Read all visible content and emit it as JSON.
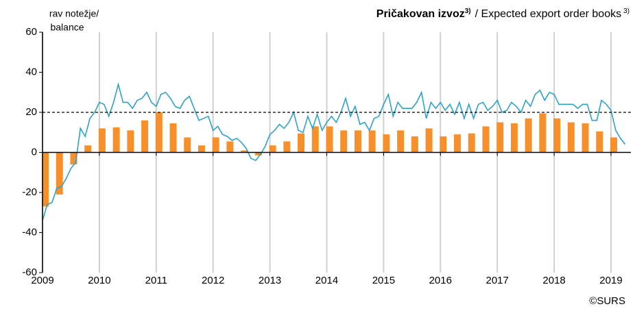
{
  "chart_data": {
    "type": "bar+line",
    "title": {
      "bold": "Pričakovan izvoz",
      "note": "3)",
      "text": "/ Expected export order books"
    },
    "ylabel": [
      "rav notežje/",
      "balance"
    ],
    "source": "©SURS",
    "xlim": [
      2009,
      2019.35
    ],
    "xticks": [
      2009,
      2010,
      2011,
      2012,
      2013,
      2014,
      2015,
      2016,
      2017,
      2018,
      2019
    ],
    "ylim": [
      -60,
      60
    ],
    "yticks": [
      -60,
      -40,
      -20,
      0,
      20,
      40,
      60
    ],
    "reference_line": 20,
    "grid": true,
    "series": [
      {
        "type": "bar",
        "color": "#f7902a",
        "x": [
          2009,
          2009.25,
          2009.5,
          2009.75,
          2010,
          2010.25,
          2010.5,
          2010.75,
          2011,
          2011.25,
          2011.5,
          2011.75,
          2012,
          2012.25,
          2012.5,
          2012.75,
          2013,
          2013.25,
          2013.5,
          2013.75,
          2014,
          2014.25,
          2014.5,
          2014.75,
          2015,
          2015.25,
          2015.5,
          2015.75,
          2016,
          2016.25,
          2016.5,
          2016.75,
          2017,
          2017.25,
          2017.5,
          2017.75,
          2018,
          2018.25,
          2018.5,
          2018.75,
          2019
        ],
        "values": [
          -27,
          -21,
          -6,
          3.5,
          12,
          12.5,
          11,
          16,
          20,
          14.5,
          7.5,
          3.5,
          7.5,
          5.5,
          1,
          -1.5,
          3.5,
          5.5,
          9.5,
          13,
          13,
          11,
          11,
          11,
          9,
          11,
          8,
          12,
          8,
          9,
          9.5,
          13,
          15,
          14.5,
          17,
          19.5,
          17,
          15,
          14.5,
          10.5,
          7.5
        ]
      },
      {
        "type": "line",
        "color": "#2aa3c9",
        "x": [
          2009,
          2009.083,
          2009.167,
          2009.25,
          2009.333,
          2009.417,
          2009.5,
          2009.583,
          2009.667,
          2009.75,
          2009.833,
          2009.917,
          2010,
          2010.083,
          2010.167,
          2010.25,
          2010.333,
          2010.417,
          2010.5,
          2010.583,
          2010.667,
          2010.75,
          2010.833,
          2010.917,
          2011,
          2011.083,
          2011.167,
          2011.25,
          2011.333,
          2011.417,
          2011.5,
          2011.583,
          2011.667,
          2011.75,
          2011.833,
          2011.917,
          2012,
          2012.083,
          2012.167,
          2012.25,
          2012.333,
          2012.417,
          2012.5,
          2012.583,
          2012.667,
          2012.75,
          2012.833,
          2012.917,
          2013,
          2013.083,
          2013.167,
          2013.25,
          2013.333,
          2013.417,
          2013.5,
          2013.583,
          2013.667,
          2013.75,
          2013.833,
          2013.917,
          2014,
          2014.083,
          2014.167,
          2014.25,
          2014.333,
          2014.417,
          2014.5,
          2014.583,
          2014.667,
          2014.75,
          2014.833,
          2014.917,
          2015,
          2015.083,
          2015.167,
          2015.25,
          2015.333,
          2015.417,
          2015.5,
          2015.583,
          2015.667,
          2015.75,
          2015.833,
          2015.917,
          2016,
          2016.083,
          2016.167,
          2016.25,
          2016.333,
          2016.417,
          2016.5,
          2016.583,
          2016.667,
          2016.75,
          2016.833,
          2016.917,
          2017,
          2017.083,
          2017.167,
          2017.25,
          2017.333,
          2017.417,
          2017.5,
          2017.583,
          2017.667,
          2017.75,
          2017.833,
          2017.917,
          2018,
          2018.083,
          2018.167,
          2018.25,
          2018.333,
          2018.417,
          2018.5,
          2018.583,
          2018.667,
          2018.75,
          2018.833,
          2018.917,
          2019,
          2019.083,
          2019.167,
          2019.25
        ],
        "values": [
          -34,
          -26,
          -25,
          -18,
          -17,
          -13,
          -8,
          -5,
          12,
          8,
          17,
          20,
          25,
          24,
          18,
          25,
          34,
          25,
          25,
          22,
          26,
          27,
          30,
          25,
          23,
          29,
          30,
          27,
          23,
          22,
          26,
          28,
          22,
          16,
          17,
          18,
          11,
          13,
          9,
          8,
          6,
          7,
          5,
          2,
          -3,
          -4,
          -1,
          3,
          9,
          11,
          14,
          12,
          15,
          20,
          11,
          10,
          18,
          12,
          19,
          11,
          15,
          18,
          15,
          20,
          27,
          18,
          23,
          14,
          15,
          11,
          17,
          18,
          24,
          29,
          18,
          25,
          22,
          22,
          22,
          25,
          30,
          17,
          25,
          22,
          25,
          21,
          24,
          19,
          25,
          17,
          24,
          17,
          24,
          25,
          21,
          23,
          26,
          20,
          21,
          25,
          23,
          20,
          26,
          23,
          29,
          31,
          26,
          30,
          29,
          24,
          24,
          24,
          24,
          22,
          24,
          24,
          16,
          16,
          26,
          24,
          21,
          11,
          7,
          4
        ]
      }
    ]
  }
}
